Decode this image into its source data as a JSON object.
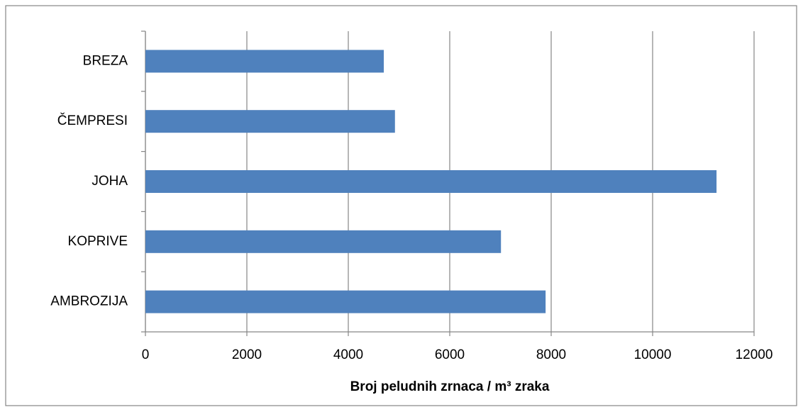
{
  "chart_data": {
    "type": "bar",
    "orientation": "horizontal",
    "x_label": "Broj peludnih zrnaca / m³ zraka",
    "categories": [
      "BREZA",
      "ČEMPRESI",
      "JOHA",
      "KOPRIVE",
      "AMBROZIJA"
    ],
    "values": [
      4700,
      4920,
      11260,
      7010,
      7890
    ],
    "color": "#4f81bd",
    "xlim": [
      0,
      12000
    ],
    "xticks": [
      0,
      2000,
      4000,
      6000,
      8000,
      10000,
      12000
    ],
    "grid": true
  }
}
